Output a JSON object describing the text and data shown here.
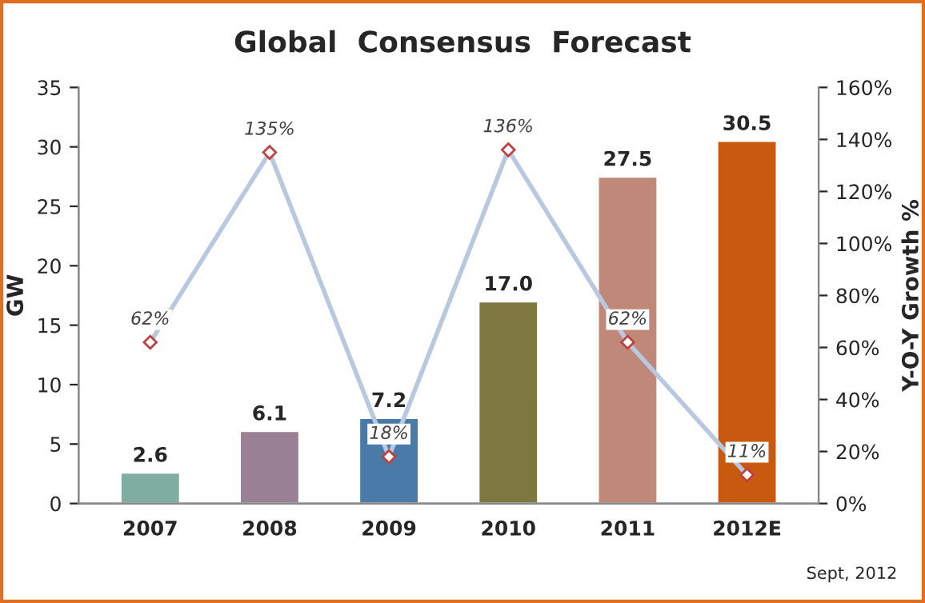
{
  "chart_data": {
    "type": "bar",
    "title": "Global  Consensus  Forecast",
    "ylabel": "GW",
    "y2label": "Y-O-Y Growth %",
    "categories": [
      "2007",
      "2008",
      "2009",
      "2010",
      "2011",
      "2012E"
    ],
    "series": [
      {
        "colors": [
          "#7fada0",
          "#9a8095",
          "#4a7aa8",
          "#7f7740",
          "#c08878",
          "#c85a10"
        ],
        "values": [
          2.6,
          6.1,
          7.2,
          17.0,
          27.5,
          30.5
        ],
        "value_labels": [
          "2.6",
          "6.1",
          "7.2",
          "17.0",
          "27.5",
          "30.5"
        ]
      },
      {
        "type": "line",
        "axis": "y2",
        "color": "#b8c8e0",
        "marker": "diamond",
        "values": [
          62,
          135,
          18,
          136,
          62,
          11
        ],
        "value_labels": [
          "62%",
          "135%",
          "18%",
          "136%",
          "62%",
          "11%"
        ]
      }
    ],
    "ylim": [
      0,
      35
    ],
    "yticks": [
      0,
      5,
      10,
      15,
      20,
      25,
      30,
      35
    ],
    "y2lim": [
      0,
      160
    ],
    "y2ticks": [
      {
        "value": 0,
        "label": "0%"
      },
      {
        "value": 20,
        "label": "20%"
      },
      {
        "value": 40,
        "label": "40%"
      },
      {
        "value": 60,
        "label": "60%"
      },
      {
        "value": 80,
        "label": "80%"
      },
      {
        "value": 100,
        "label": "100%"
      },
      {
        "value": 120,
        "label": "120%"
      },
      {
        "value": 140,
        "label": "140%"
      },
      {
        "value": 160,
        "label": "160%"
      }
    ],
    "grid": false,
    "legend": false,
    "annotations": [
      "Sept, 2012"
    ]
  }
}
